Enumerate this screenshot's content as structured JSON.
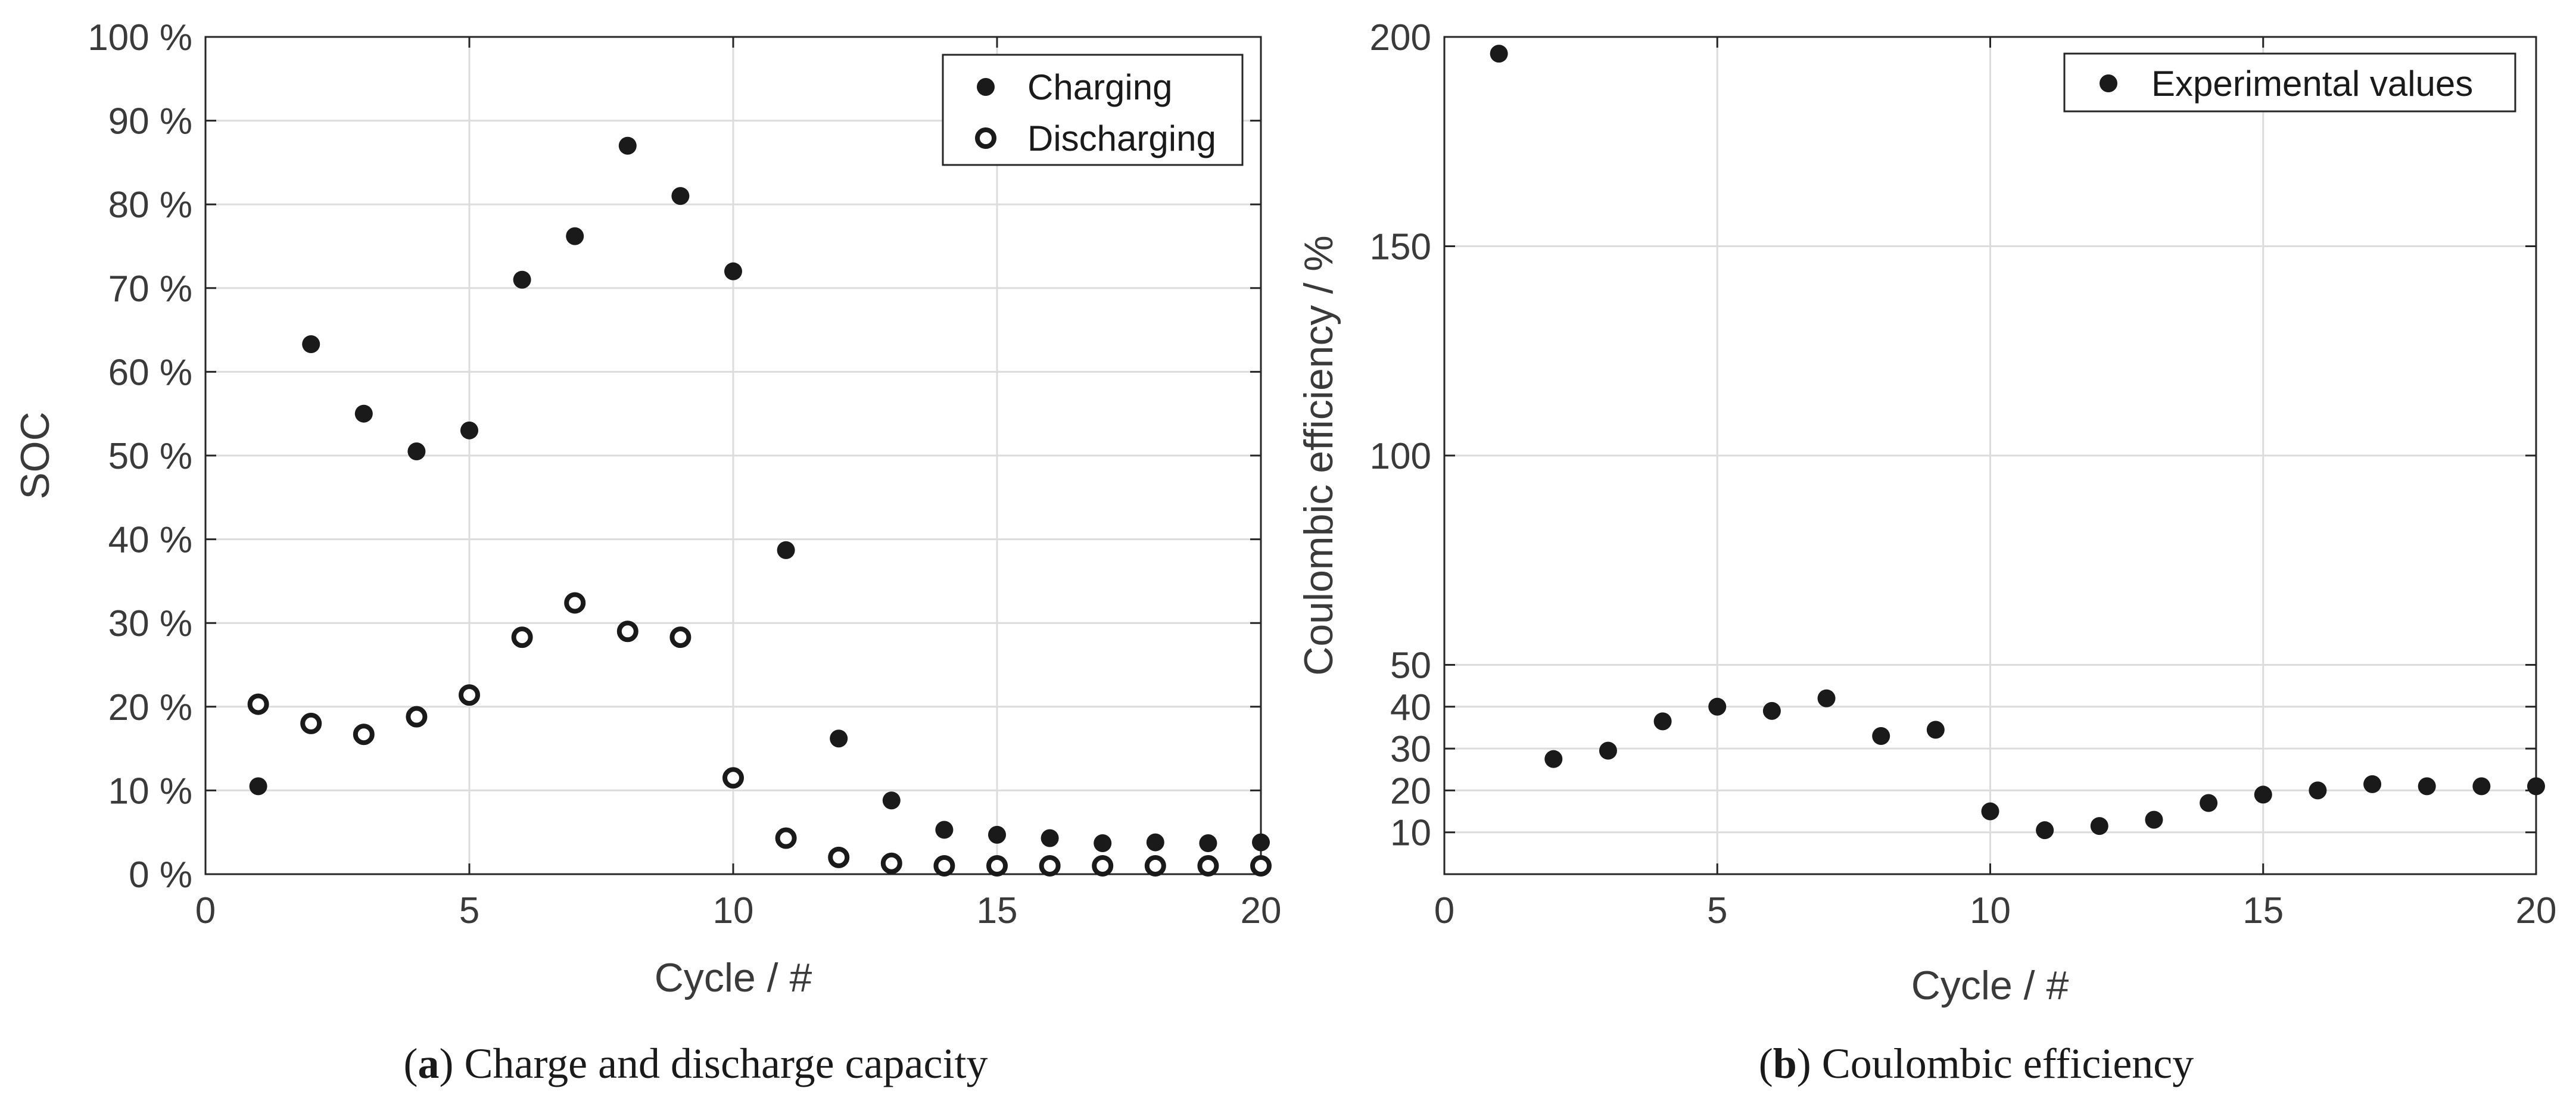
{
  "chart_data": [
    {
      "id": "a",
      "type": "scatter",
      "caption": {
        "letter": "a",
        "text": "Charge and discharge capacity"
      },
      "xlabel": "Cycle / #",
      "ylabel": "SOC",
      "xlim": [
        0,
        20
      ],
      "ylim": [
        0,
        100
      ],
      "xticks": [
        0,
        5,
        10,
        15,
        20
      ],
      "xtick_labels": [
        "0",
        "5",
        "10",
        "15",
        "20"
      ],
      "yticks": [
        0,
        10,
        20,
        30,
        40,
        50,
        60,
        70,
        80,
        90,
        100
      ],
      "ytick_labels": [
        "0 %",
        "10 %",
        "20 %",
        "30 %",
        "40 %",
        "50 %",
        "60 %",
        "70 %",
        "80 %",
        "90 %",
        "100 %"
      ],
      "grid": true,
      "legend_position": "top-right",
      "series": [
        {
          "name": "Charging",
          "marker": "filled",
          "x": [
            1,
            2,
            3,
            4,
            5,
            6,
            7,
            8,
            9,
            10,
            11,
            12,
            13,
            14,
            15,
            16,
            17,
            18,
            19,
            20
          ],
          "y": [
            10.5,
            63.3,
            55.0,
            50.5,
            53.0,
            71.0,
            76.2,
            87.0,
            81.0,
            72.0,
            38.7,
            16.2,
            8.8,
            5.3,
            4.7,
            4.3,
            3.7,
            3.8,
            3.7,
            3.8
          ]
        },
        {
          "name": "Discharging",
          "marker": "hollow",
          "x": [
            1,
            2,
            3,
            4,
            5,
            6,
            7,
            8,
            9,
            10,
            11,
            12,
            13,
            14,
            15,
            16,
            17,
            18,
            19,
            20
          ],
          "y": [
            20.3,
            18.0,
            16.7,
            18.8,
            21.4,
            28.3,
            32.4,
            29.0,
            28.3,
            11.5,
            4.3,
            2.0,
            1.3,
            1.0,
            1.0,
            1.0,
            1.0,
            1.0,
            1.0,
            1.0
          ]
        }
      ]
    },
    {
      "id": "b",
      "type": "scatter",
      "caption": {
        "letter": "b",
        "text": "Coulombic efficiency"
      },
      "xlabel": "Cycle / #",
      "ylabel": "Coulombic efficiency / %",
      "xlim": [
        0,
        20
      ],
      "ylim": [
        0,
        200
      ],
      "xticks": [
        0,
        5,
        10,
        15,
        20
      ],
      "xtick_labels": [
        "0",
        "5",
        "10",
        "15",
        "20"
      ],
      "yticks": [
        10,
        20,
        30,
        40,
        50,
        100,
        150,
        200
      ],
      "ytick_labels": [
        "10",
        "20",
        "30",
        "40",
        "50",
        "100",
        "150",
        "200"
      ],
      "grid": true,
      "legend_position": "top-right",
      "series": [
        {
          "name": "Experimental values",
          "marker": "filled",
          "x": [
            1,
            2,
            3,
            4,
            5,
            6,
            7,
            8,
            9,
            10,
            11,
            12,
            13,
            14,
            15,
            16,
            17,
            18,
            19,
            20
          ],
          "y": [
            196.0,
            27.5,
            29.5,
            36.5,
            40.0,
            39.0,
            42.0,
            33.0,
            34.5,
            15.0,
            10.5,
            11.5,
            13.0,
            17.0,
            19.0,
            20.0,
            21.5,
            21.0,
            21.0,
            21.0
          ]
        }
      ]
    }
  ]
}
